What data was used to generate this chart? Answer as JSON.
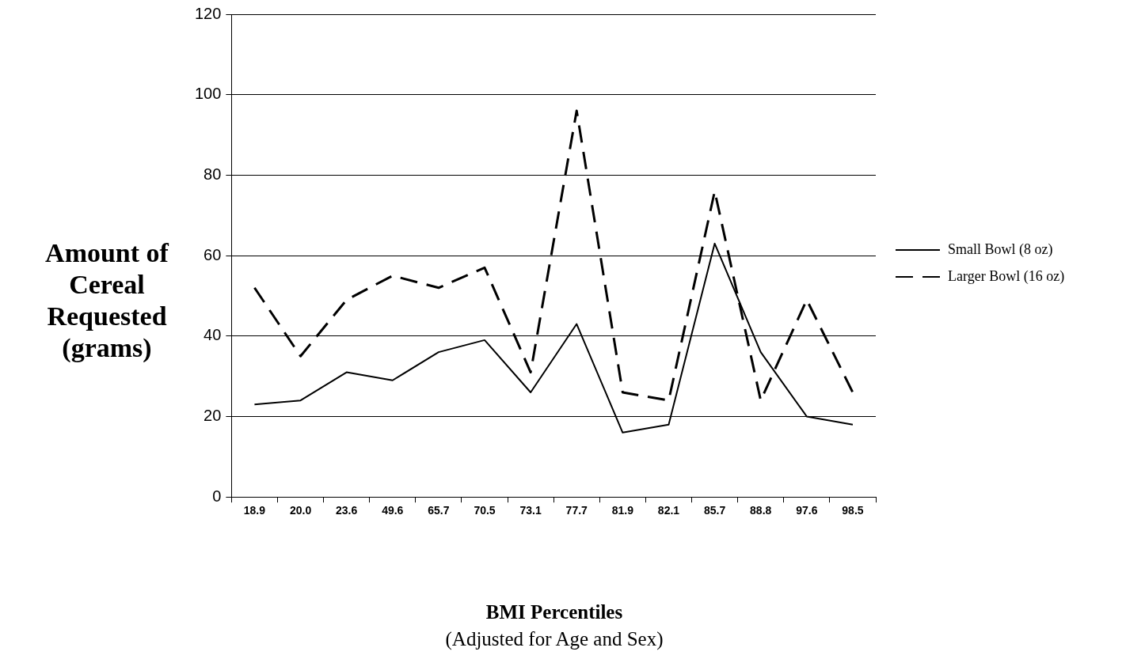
{
  "chart_data": {
    "type": "line",
    "xlabel": "BMI Percentiles",
    "ylabel": "Amount of Cereal Requested (grams)",
    "annotations": [
      "(Adjusted for Age and Sex)"
    ],
    "categories": [
      "18.9",
      "20.0",
      "23.6",
      "49.6",
      "65.7",
      "70.5",
      "73.1",
      "77.7",
      "81.9",
      "82.1",
      "85.7",
      "88.8",
      "97.6",
      "98.5"
    ],
    "series": [
      {
        "name": "Small Bowl (8 oz)",
        "color": "#000000",
        "line_style": "solid",
        "values": [
          23,
          24,
          31,
          29,
          36,
          39,
          26,
          43,
          16,
          18,
          63,
          36,
          20,
          18
        ]
      },
      {
        "name": "Larger Bowl (16 oz)",
        "color": "#000000",
        "line_style": "dashed",
        "values": [
          52,
          35,
          49,
          55,
          52,
          57,
          31,
          96,
          26,
          24,
          76,
          24,
          49,
          26
        ]
      }
    ],
    "ylim": [
      0,
      120
    ],
    "yticks": [
      0,
      20,
      40,
      60,
      80,
      100,
      120
    ],
    "grid": "y",
    "legend": "right",
    "marker": "none"
  }
}
